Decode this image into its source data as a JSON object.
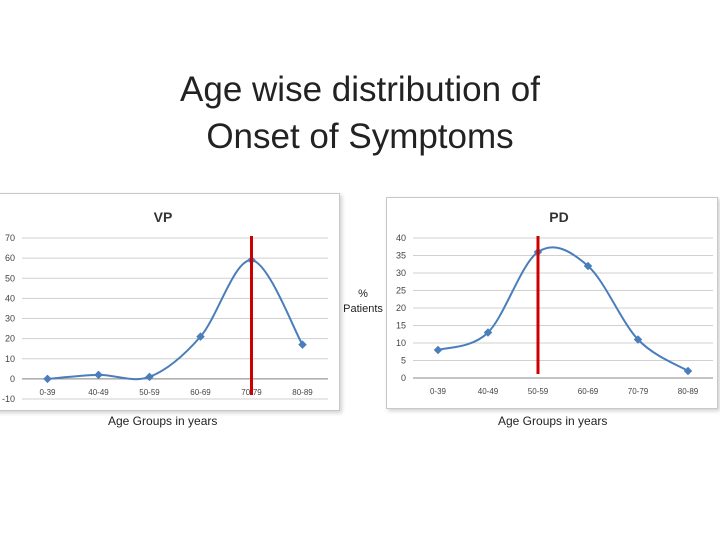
{
  "slide": {
    "title_line1": "Age wise distribution of",
    "title_line2": "Onset of Symptoms",
    "y_caption_line1": "%",
    "y_caption_line2": "Patients",
    "x_caption_left": "Age Groups in years",
    "x_caption_right": "Age Groups in years"
  },
  "chart_data": [
    {
      "type": "line",
      "title": "VP",
      "categories": [
        "0-39",
        "40-49",
        "50-59",
        "60-69",
        "70-79",
        "80-89"
      ],
      "series": [
        {
          "values": [
            0,
            2,
            1,
            21,
            59,
            17
          ]
        }
      ],
      "ylim": [
        -10,
        70
      ],
      "yticks": [
        -10,
        0,
        10,
        20,
        30,
        40,
        50,
        60,
        70
      ],
      "grid": true,
      "line_color": "#4a7ebb",
      "marker_color": "#4a7ebb",
      "marker_line_at": 4,
      "marker_line_color": "#cc0000"
    },
    {
      "type": "line",
      "title": "PD",
      "categories": [
        "0-39",
        "40-49",
        "50-59",
        "60-69",
        "70-79",
        "80-89"
      ],
      "series": [
        {
          "values": [
            8,
            13,
            36,
            32,
            11,
            2
          ]
        }
      ],
      "ylim": [
        0,
        40
      ],
      "yticks": [
        0,
        5,
        10,
        15,
        20,
        25,
        30,
        35,
        40
      ],
      "grid": true,
      "line_color": "#4a7ebb",
      "marker_color": "#4a7ebb",
      "marker_line_at": 2,
      "marker_line_color": "#cc0000"
    }
  ]
}
